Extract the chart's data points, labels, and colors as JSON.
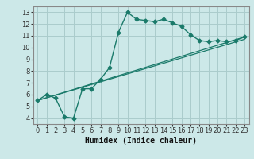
{
  "xlabel": "Humidex (Indice chaleur)",
  "bg_color": "#cce8e8",
  "grid_color": "#aacccc",
  "line_color": "#1a7a6a",
  "xlim": [
    -0.5,
    23.5
  ],
  "ylim": [
    3.5,
    13.5
  ],
  "xticks": [
    0,
    1,
    2,
    3,
    4,
    5,
    6,
    7,
    8,
    9,
    10,
    11,
    12,
    13,
    14,
    15,
    16,
    17,
    18,
    19,
    20,
    21,
    22,
    23
  ],
  "yticks": [
    4,
    5,
    6,
    7,
    8,
    9,
    10,
    11,
    12,
    13
  ],
  "series1_x": [
    0,
    1,
    2,
    3,
    4,
    5,
    6,
    7,
    8,
    9,
    10,
    11,
    12,
    13,
    14,
    15,
    16,
    17,
    18,
    19,
    20,
    21,
    22,
    23
  ],
  "series1_y": [
    5.5,
    6.0,
    5.7,
    4.1,
    4.0,
    6.5,
    6.5,
    7.3,
    8.3,
    11.3,
    13.0,
    12.4,
    12.3,
    12.2,
    12.4,
    12.1,
    11.8,
    11.1,
    10.6,
    10.5,
    10.6,
    10.5,
    10.6,
    10.9
  ],
  "series2_x": [
    0,
    23
  ],
  "series2_y": [
    5.5,
    10.9
  ],
  "series3_x": [
    0,
    23
  ],
  "series3_y": [
    5.5,
    10.7
  ],
  "xlabel_fontsize": 7,
  "tick_fontsize": 6
}
